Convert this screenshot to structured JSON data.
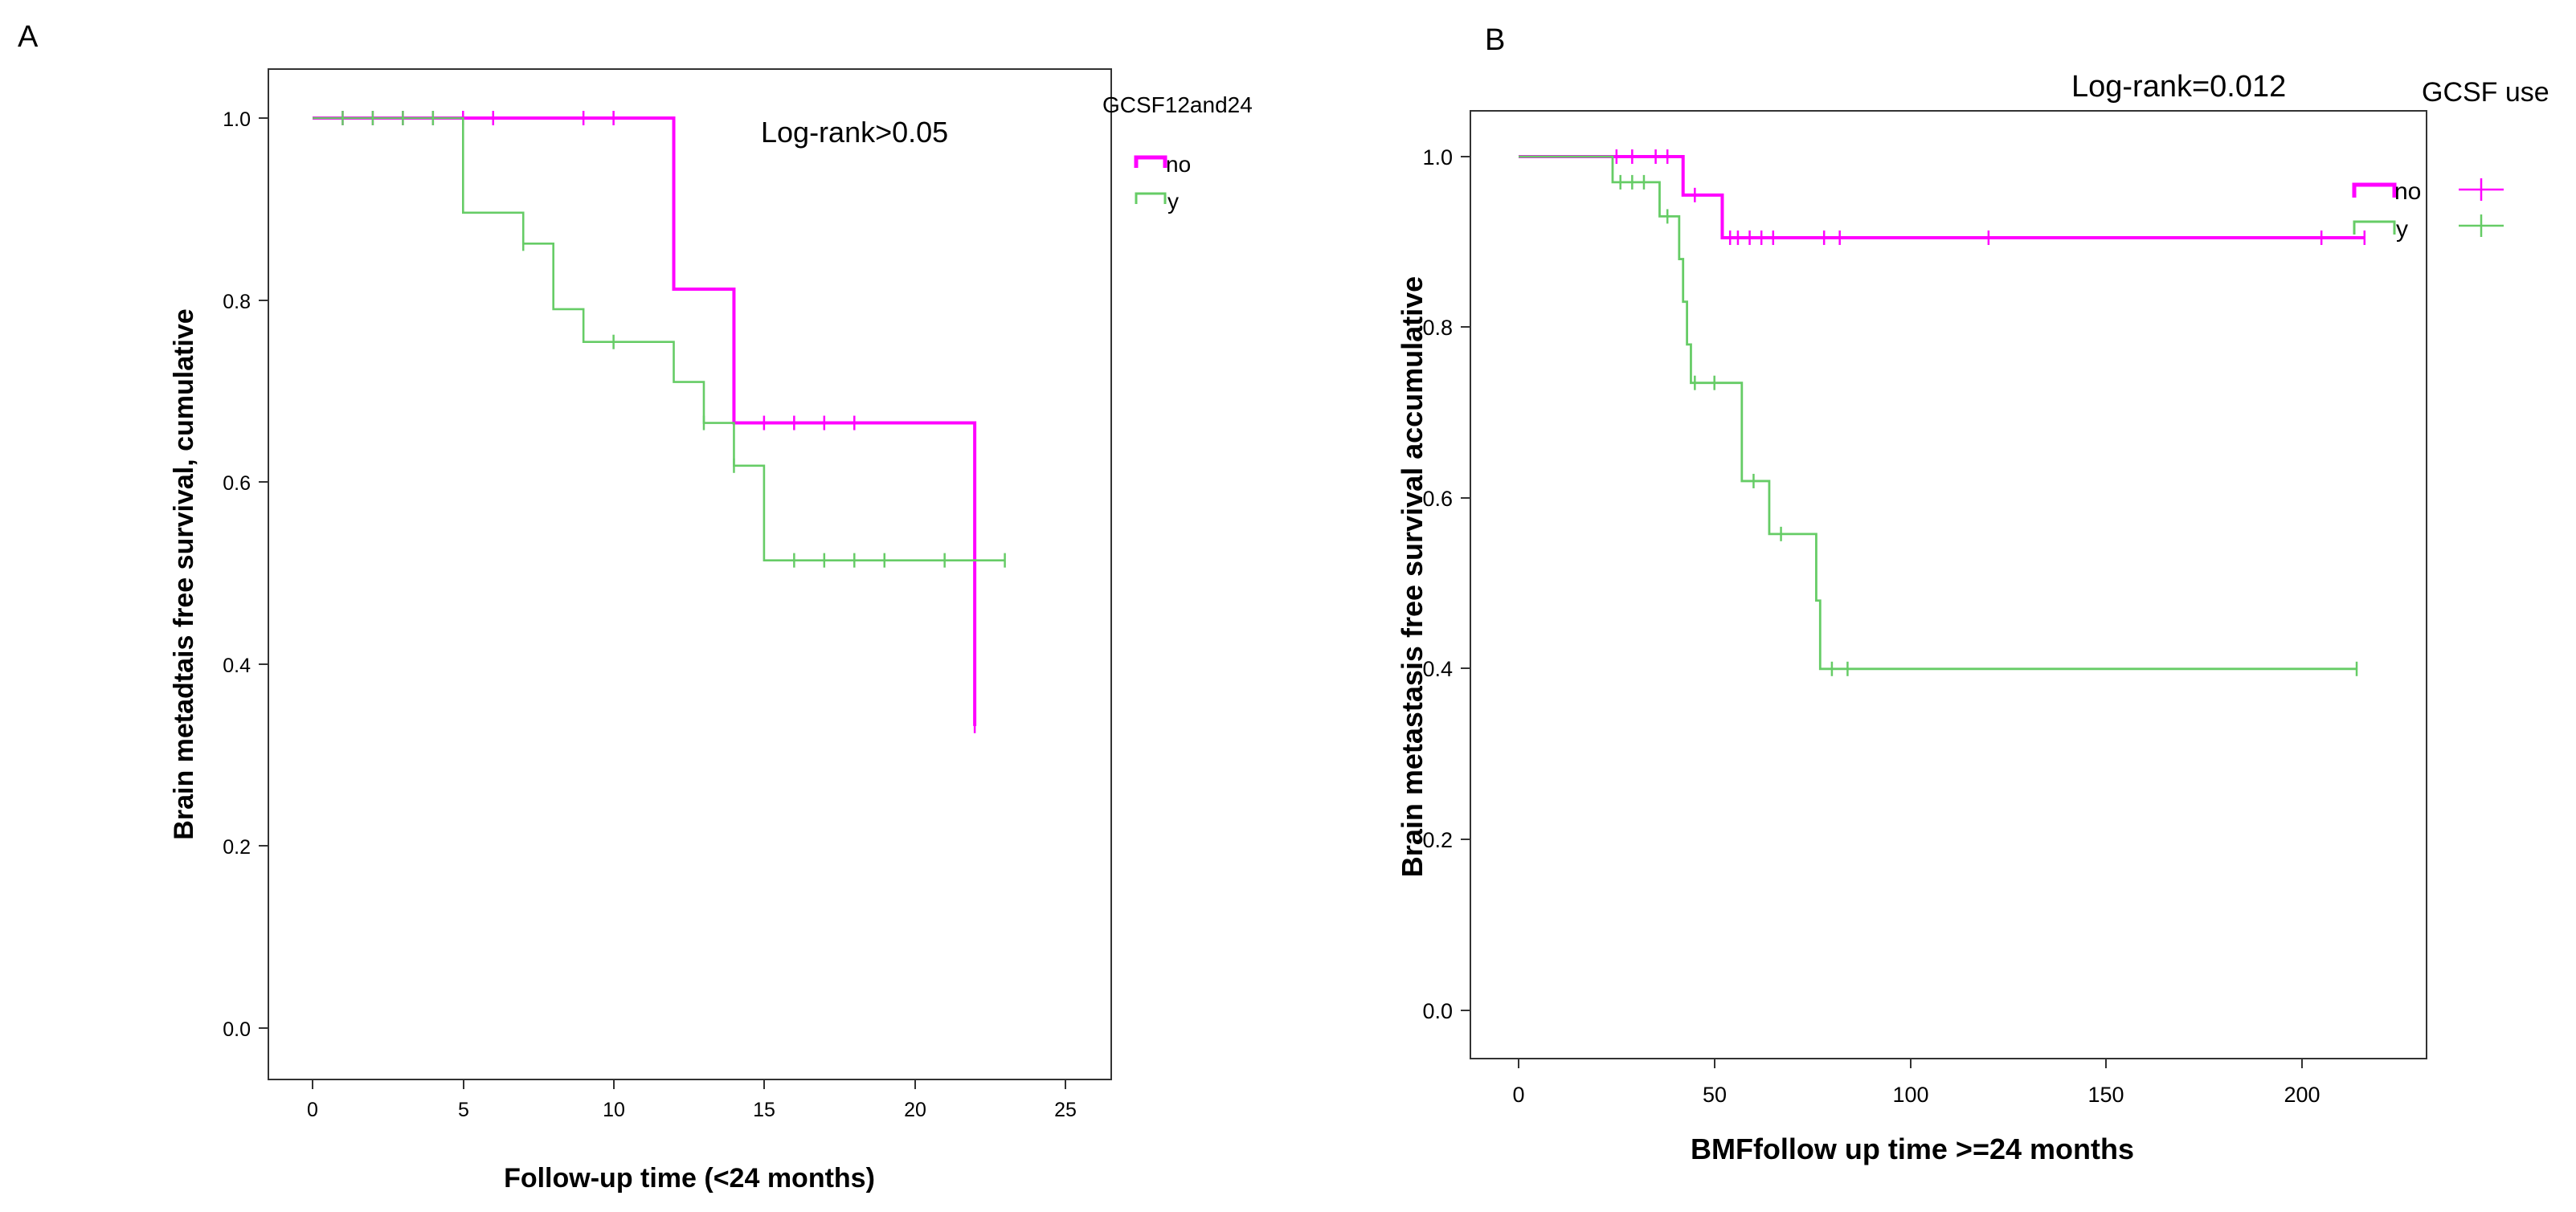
{
  "panels": [
    {
      "panel_label": "A",
      "annotation": "Log-rank>0.05",
      "legend_title": "GCSF12and24",
      "legend_entries": [
        "no",
        "y"
      ],
      "x_ticks": [
        "0",
        "5",
        "10",
        "15",
        "20",
        "25"
      ],
      "y_ticks": [
        "0.0",
        "0.2",
        "0.4",
        "0.6",
        "0.8",
        "1.0"
      ]
    },
    {
      "panel_label": "B",
      "annotation": "Log-rank=0.012",
      "legend_title": "GCSF use",
      "legend_entries": [
        "no",
        "y"
      ],
      "x_ticks": [
        "0",
        "50",
        "100",
        "150",
        "200"
      ],
      "y_ticks": [
        "0.0",
        "0.2",
        "0.4",
        "0.6",
        "0.8",
        "1.0"
      ]
    }
  ],
  "colors": {
    "no": "#ff00ff",
    "y": "#66cc66",
    "axis": "#000000"
  },
  "chart_data": [
    {
      "type": "line",
      "subtype": "kaplan-meier-step",
      "title": "",
      "xlabel": "Follow-up time (<24 months)",
      "ylabel": "Brain metadtais free survival, cumulative",
      "xlim": [
        -1.5,
        26.5
      ],
      "ylim": [
        -0.06,
        1.06
      ],
      "grid": false,
      "legend_position": "right",
      "series": [
        {
          "name": "no",
          "color": "#ff00ff",
          "steps": [
            [
              0,
              1.0
            ],
            [
              12,
              0.812
            ],
            [
              14,
              0.665
            ],
            [
              22,
              0.332
            ]
          ],
          "end": 22,
          "censored": [
            [
              1,
              1.0
            ],
            [
              2,
              1.0
            ],
            [
              3,
              1.0
            ],
            [
              4,
              1.0
            ],
            [
              5,
              1.0
            ],
            [
              6,
              1.0
            ],
            [
              9,
              1.0
            ],
            [
              10,
              1.0
            ],
            [
              15,
              0.665
            ],
            [
              16,
              0.665
            ],
            [
              17,
              0.665
            ],
            [
              18,
              0.665
            ],
            [
              22,
              0.332
            ]
          ]
        },
        {
          "name": "y",
          "color": "#66cc66",
          "steps": [
            [
              0,
              1.0
            ],
            [
              5,
              0.896
            ],
            [
              7,
              0.862
            ],
            [
              8,
              0.79
            ],
            [
              9,
              0.754
            ],
            [
              12,
              0.71
            ],
            [
              13,
              0.665
            ],
            [
              14,
              0.618
            ],
            [
              15,
              0.514
            ]
          ],
          "end": 23,
          "censored": [
            [
              1,
              1.0
            ],
            [
              2,
              1.0
            ],
            [
              3,
              1.0
            ],
            [
              4,
              1.0
            ],
            [
              7,
              0.862
            ],
            [
              10,
              0.754
            ],
            [
              13,
              0.665
            ],
            [
              14,
              0.618
            ],
            [
              16,
              0.514
            ],
            [
              17,
              0.514
            ],
            [
              18,
              0.514
            ],
            [
              19,
              0.514
            ],
            [
              21,
              0.514
            ],
            [
              23,
              0.514
            ]
          ]
        }
      ]
    },
    {
      "type": "line",
      "subtype": "kaplan-meier-step",
      "title": "",
      "xlabel": "BMFfollow up time >=24 months",
      "ylabel": "Brain metastasis free survival accumulative",
      "xlim": [
        -12,
        232
      ],
      "ylim": [
        -0.06,
        1.06
      ],
      "grid": false,
      "legend_position": "right",
      "series": [
        {
          "name": "no",
          "color": "#ff00ff",
          "steps": [
            [
              0,
              1.0
            ],
            [
              42,
              0.955
            ],
            [
              52,
              0.905
            ]
          ],
          "end": 216,
          "censored": [
            [
              25,
              1.0
            ],
            [
              29,
              1.0
            ],
            [
              35,
              1.0
            ],
            [
              38,
              1.0
            ],
            [
              45,
              0.955
            ],
            [
              54,
              0.905
            ],
            [
              56,
              0.905
            ],
            [
              59,
              0.905
            ],
            [
              62,
              0.905
            ],
            [
              65,
              0.905
            ],
            [
              78,
              0.905
            ],
            [
              82,
              0.905
            ],
            [
              120,
              0.905
            ],
            [
              205,
              0.905
            ],
            [
              216,
              0.905
            ]
          ]
        },
        {
          "name": "y",
          "color": "#66cc66",
          "steps": [
            [
              0,
              1.0
            ],
            [
              24,
              0.97
            ],
            [
              36,
              0.93
            ],
            [
              41,
              0.88
            ],
            [
              42,
              0.83
            ],
            [
              43,
              0.78
            ],
            [
              44,
              0.735
            ],
            [
              57,
              0.62
            ],
            [
              64,
              0.558
            ],
            [
              76,
              0.48
            ],
            [
              77,
              0.4
            ]
          ],
          "end": 214,
          "censored": [
            [
              26,
              0.97
            ],
            [
              29,
              0.97
            ],
            [
              32,
              0.97
            ],
            [
              38,
              0.93
            ],
            [
              45,
              0.735
            ],
            [
              50,
              0.735
            ],
            [
              60,
              0.62
            ],
            [
              67,
              0.558
            ],
            [
              80,
              0.4
            ],
            [
              84,
              0.4
            ],
            [
              214,
              0.4
            ]
          ]
        }
      ]
    }
  ]
}
